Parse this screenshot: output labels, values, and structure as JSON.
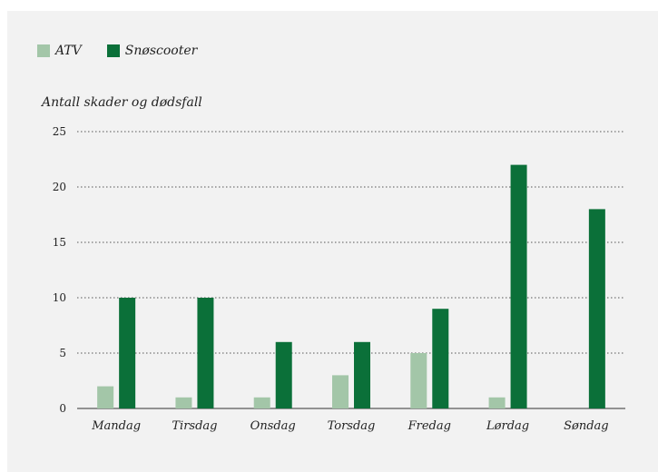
{
  "chart_data": {
    "type": "bar",
    "title": "",
    "xlabel": "",
    "ylabel": "Antall skader og dødsfall",
    "categories": [
      "Mandag",
      "Tirsdag",
      "Onsdag",
      "Torsdag",
      "Fredag",
      "Lørdag",
      "Søndag"
    ],
    "series": [
      {
        "name": "ATV",
        "color": "#a3c6a8",
        "values": [
          2,
          1,
          1,
          3,
          5,
          1,
          0
        ]
      },
      {
        "name": "Snøscooter",
        "color": "#0b7039",
        "values": [
          10,
          10,
          6,
          6,
          9,
          22,
          18
        ]
      }
    ],
    "ylim": [
      0,
      25
    ],
    "yticks": [
      0,
      5,
      10,
      15,
      20,
      25
    ],
    "grid": true,
    "legend_position": "top-left"
  }
}
